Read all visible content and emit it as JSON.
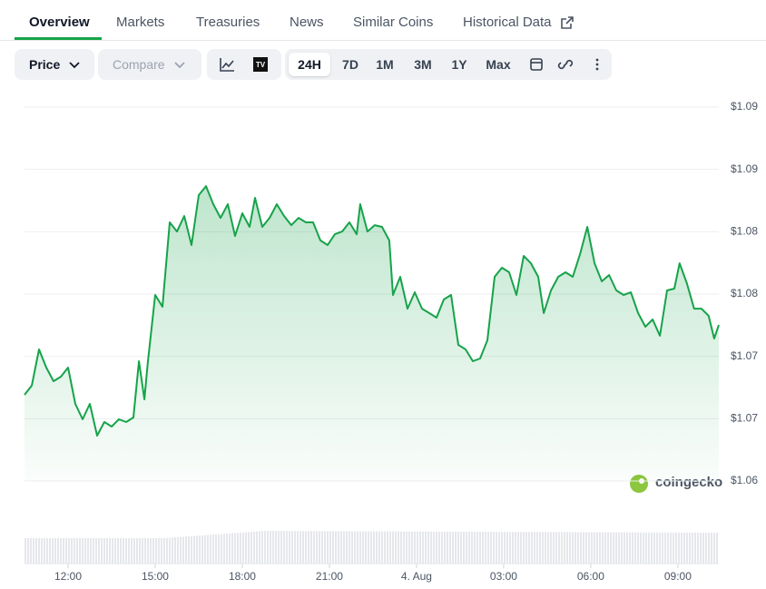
{
  "tabs": [
    "Overview",
    "Markets",
    "Treasuries",
    "News",
    "Similar Coins",
    "Historical Data"
  ],
  "toolbar": {
    "price": "Price",
    "compare": "Compare",
    "ranges": [
      "24H",
      "7D",
      "1M",
      "3M",
      "1Y",
      "Max"
    ]
  },
  "watermark": "coingecko",
  "chart_data": {
    "type": "area",
    "x": [
      -1.5,
      -1.25,
      -1,
      -0.75,
      -0.5,
      -0.25,
      0,
      0.25,
      0.5,
      0.75,
      1,
      1.25,
      1.5,
      1.75,
      2,
      2.25,
      2.44,
      2.63,
      2.75,
      3,
      3.25,
      3.5,
      3.75,
      4,
      4.25,
      4.5,
      4.75,
      5,
      5.25,
      5.5,
      5.75,
      6,
      6.25,
      6.44,
      6.69,
      6.94,
      7.19,
      7.44,
      7.69,
      7.94,
      8.19,
      8.44,
      8.69,
      8.94,
      9.19,
      9.44,
      9.69,
      9.94,
      10.06,
      10.31,
      10.56,
      10.81,
      11.06,
      11.19,
      11.44,
      11.69,
      11.94,
      12.19,
      12.44,
      12.69,
      12.94,
      13.19,
      13.44,
      13.69,
      13.94,
      14.19,
      14.44,
      14.69,
      14.94,
      15.19,
      15.44,
      15.69,
      15.94,
      16.19,
      16.38,
      16.63,
      16.88,
      17.13,
      17.38,
      17.63,
      17.88,
      18.13,
      18.38,
      18.63,
      18.88,
      19.13,
      19.38,
      19.63,
      19.88,
      20.13,
      20.38,
      20.63,
      20.88,
      21.06,
      21.31,
      21.56,
      21.81,
      22.06,
      22.25,
      22.41
    ],
    "series": [
      {
        "color": "#16a34a",
        "values": [
          1.06942,
          1.07015,
          1.07306,
          1.0716,
          1.07051,
          1.07087,
          1.0716,
          1.06869,
          1.06745,
          1.06869,
          1.06614,
          1.06723,
          1.06687,
          1.06745,
          1.06723,
          1.0676,
          1.07211,
          1.06905,
          1.07211,
          1.07743,
          1.07648,
          1.08325,
          1.08252,
          1.08376,
          1.08143,
          1.08544,
          1.08616,
          1.08471,
          1.08361,
          1.08471,
          1.08216,
          1.08398,
          1.08289,
          1.08522,
          1.08289,
          1.08361,
          1.08471,
          1.08376,
          1.08303,
          1.08361,
          1.08325,
          1.08325,
          1.0818,
          1.08143,
          1.0823,
          1.08252,
          1.08325,
          1.0823,
          1.08471,
          1.08252,
          1.08303,
          1.08289,
          1.0818,
          1.07743,
          1.07888,
          1.07633,
          1.07764,
          1.07633,
          1.07597,
          1.07561,
          1.07706,
          1.07743,
          1.07342,
          1.07306,
          1.07211,
          1.07233,
          1.07379,
          1.07888,
          1.07961,
          1.07925,
          1.07743,
          1.08056,
          1.07997,
          1.07888,
          1.07597,
          1.07779,
          1.07888,
          1.07925,
          1.07888,
          1.0807,
          1.08289,
          1.07997,
          1.07852,
          1.07903,
          1.07779,
          1.07743,
          1.07764,
          1.07597,
          1.07488,
          1.07546,
          1.07415,
          1.07779,
          1.07794,
          1.07997,
          1.07837,
          1.07633,
          1.07633,
          1.07575,
          1.07393,
          1.07502
        ]
      }
    ],
    "xlim": [
      -1.5,
      22.41
    ],
    "xticks": [
      {
        "value": 0,
        "label": "12:00"
      },
      {
        "value": 3,
        "label": "15:00"
      },
      {
        "value": 6,
        "label": "18:00"
      },
      {
        "value": 9,
        "label": "21:00"
      },
      {
        "value": 12,
        "label": "4. Aug"
      },
      {
        "value": 15,
        "label": "03:00"
      },
      {
        "value": 18,
        "label": "06:00"
      },
      {
        "value": 21,
        "label": "09:00"
      }
    ],
    "ylim": [
      1.0625,
      1.0925
    ],
    "yticks": [
      {
        "value": 1.0625,
        "label": "$1.06"
      },
      {
        "value": 1.0675,
        "label": "$1.07"
      },
      {
        "value": 1.0725,
        "label": "$1.07"
      },
      {
        "value": 1.0775,
        "label": "$1.08"
      },
      {
        "value": 1.0825,
        "label": "$1.08"
      },
      {
        "value": 1.0875,
        "label": "$1.09"
      },
      {
        "value": 1.0925,
        "label": "$1.09"
      }
    ],
    "grid": true
  }
}
